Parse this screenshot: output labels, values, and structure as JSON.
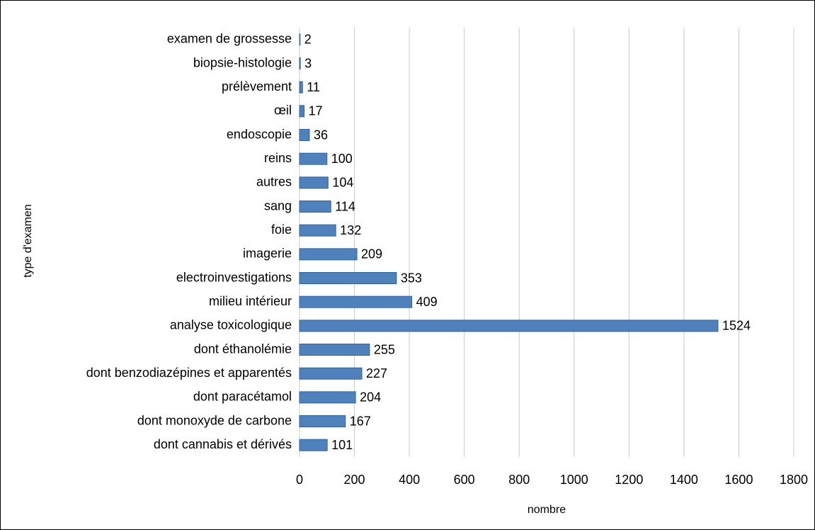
{
  "chart_data": {
    "type": "bar",
    "orientation": "horizontal",
    "x_label": "nombre",
    "y_label": "type d'examen",
    "categories": [
      "examen de grossesse",
      "biopsie-histologie",
      "prélèvement",
      "œil",
      "endoscopie",
      "reins",
      "autres",
      "sang",
      "foie",
      "imagerie",
      "electroinvestigations",
      "milieu intérieur",
      "analyse toxicologique",
      "dont éthanolémie",
      "dont benzodiazépines et apparentés",
      "dont paracétamol",
      "dont monoxyde de carbone",
      "dont cannabis et dérivés"
    ],
    "values": [
      2,
      3,
      11,
      17,
      36,
      100,
      104,
      114,
      132,
      209,
      353,
      409,
      1524,
      255,
      227,
      204,
      167,
      101
    ],
    "color": "#4f81bd",
    "xlim": [
      0,
      1800
    ],
    "xticks": [
      0,
      200,
      400,
      600,
      800,
      1000,
      1200,
      1400,
      1600,
      1800
    ],
    "grid": true
  }
}
